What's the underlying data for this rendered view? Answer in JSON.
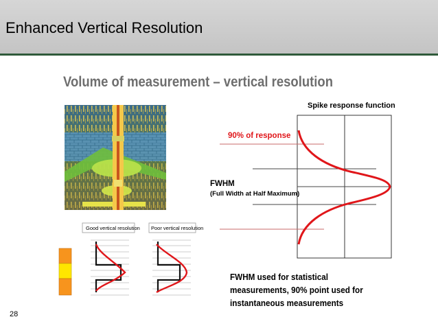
{
  "header": {
    "title": "Enhanced Vertical Resolution"
  },
  "slide": {
    "subtitle": "Volume of measurement – vertical resolution",
    "page_number": "28"
  },
  "spike": {
    "title": "Spike response function",
    "percent_label": "90% of response",
    "fwhm_label": "FWHM",
    "fwhm_full": "(Full Width at Half Maximum)",
    "curve_color": "#e0161a"
  },
  "resolution": {
    "good_label": "Good vertical resolution",
    "poor_label": "Poor vertical resolution"
  },
  "note": {
    "line1": "FWHM used for statistical",
    "line2": "measurements, 90% point used for",
    "line3": "instantaneous measurements"
  },
  "colors": {
    "header_rule": "#2f5a3a",
    "orange": "#f7941d",
    "yellow": "#ffe600"
  }
}
